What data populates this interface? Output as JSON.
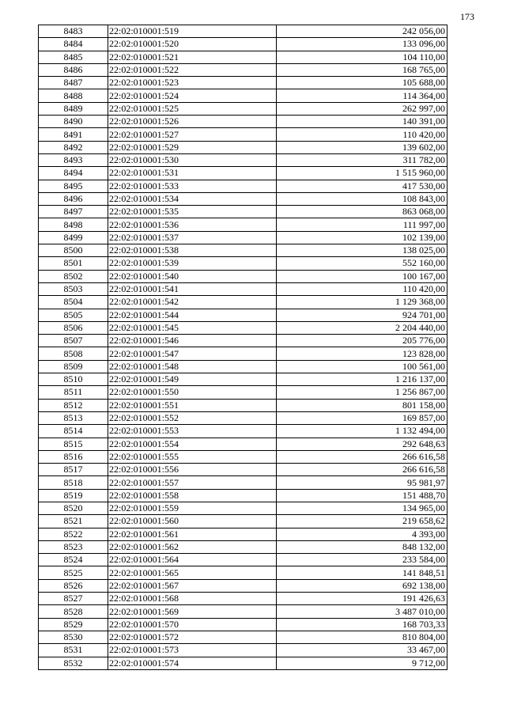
{
  "page_number": "173",
  "rows": [
    [
      "8483",
      "22:02:010001:519",
      "242 056,00"
    ],
    [
      "8484",
      "22:02:010001:520",
      "133 096,00"
    ],
    [
      "8485",
      "22:02:010001:521",
      "104 110,00"
    ],
    [
      "8486",
      "22:02:010001:522",
      "168 765,00"
    ],
    [
      "8487",
      "22:02:010001:523",
      "105 688,00"
    ],
    [
      "8488",
      "22:02:010001:524",
      "114 364,00"
    ],
    [
      "8489",
      "22:02:010001:525",
      "262 997,00"
    ],
    [
      "8490",
      "22:02:010001:526",
      "140 391,00"
    ],
    [
      "8491",
      "22:02:010001:527",
      "110 420,00"
    ],
    [
      "8492",
      "22:02:010001:529",
      "139 602,00"
    ],
    [
      "8493",
      "22:02:010001:530",
      "311 782,00"
    ],
    [
      "8494",
      "22:02:010001:531",
      "1 515 960,00"
    ],
    [
      "8495",
      "22:02:010001:533",
      "417 530,00"
    ],
    [
      "8496",
      "22:02:010001:534",
      "108 843,00"
    ],
    [
      "8497",
      "22:02:010001:535",
      "863 068,00"
    ],
    [
      "8498",
      "22:02:010001:536",
      "111 997,00"
    ],
    [
      "8499",
      "22:02:010001:537",
      "102 139,00"
    ],
    [
      "8500",
      "22:02:010001:538",
      "138 025,00"
    ],
    [
      "8501",
      "22:02:010001:539",
      "552 160,00"
    ],
    [
      "8502",
      "22:02:010001:540",
      "100 167,00"
    ],
    [
      "8503",
      "22:02:010001:541",
      "110 420,00"
    ],
    [
      "8504",
      "22:02:010001:542",
      "1 129 368,00"
    ],
    [
      "8505",
      "22:02:010001:544",
      "924 701,00"
    ],
    [
      "8506",
      "22:02:010001:545",
      "2 204 440,00"
    ],
    [
      "8507",
      "22:02:010001:546",
      "205 776,00"
    ],
    [
      "8508",
      "22:02:010001:547",
      "123 828,00"
    ],
    [
      "8509",
      "22:02:010001:548",
      "100 561,00"
    ],
    [
      "8510",
      "22:02:010001:549",
      "1 216 137,00"
    ],
    [
      "8511",
      "22:02:010001:550",
      "1 256 867,00"
    ],
    [
      "8512",
      "22:02:010001:551",
      "801 158,00"
    ],
    [
      "8513",
      "22:02:010001:552",
      "169 857,00"
    ],
    [
      "8514",
      "22:02:010001:553",
      "1 132 494,00"
    ],
    [
      "8515",
      "22:02:010001:554",
      "292 648,63"
    ],
    [
      "8516",
      "22:02:010001:555",
      "266 616,58"
    ],
    [
      "8517",
      "22:02:010001:556",
      "266 616,58"
    ],
    [
      "8518",
      "22:02:010001:557",
      "95 981,97"
    ],
    [
      "8519",
      "22:02:010001:558",
      "151 488,70"
    ],
    [
      "8520",
      "22:02:010001:559",
      "134 965,00"
    ],
    [
      "8521",
      "22:02:010001:560",
      "219 658,62"
    ],
    [
      "8522",
      "22:02:010001:561",
      "4 393,00"
    ],
    [
      "8523",
      "22:02:010001:562",
      "848 132,00"
    ],
    [
      "8524",
      "22:02:010001:564",
      "233 584,00"
    ],
    [
      "8525",
      "22:02:010001:565",
      "141 848,51"
    ],
    [
      "8526",
      "22:02:010001:567",
      "692 138,00"
    ],
    [
      "8527",
      "22:02:010001:568",
      "191 426,63"
    ],
    [
      "8528",
      "22:02:010001:569",
      "3 487 010,00"
    ],
    [
      "8529",
      "22:02:010001:570",
      "168 703,33"
    ],
    [
      "8530",
      "22:02:010001:572",
      "810 804,00"
    ],
    [
      "8531",
      "22:02:010001:573",
      "33 467,00"
    ],
    [
      "8532",
      "22:02:010001:574",
      "9 712,00"
    ]
  ]
}
